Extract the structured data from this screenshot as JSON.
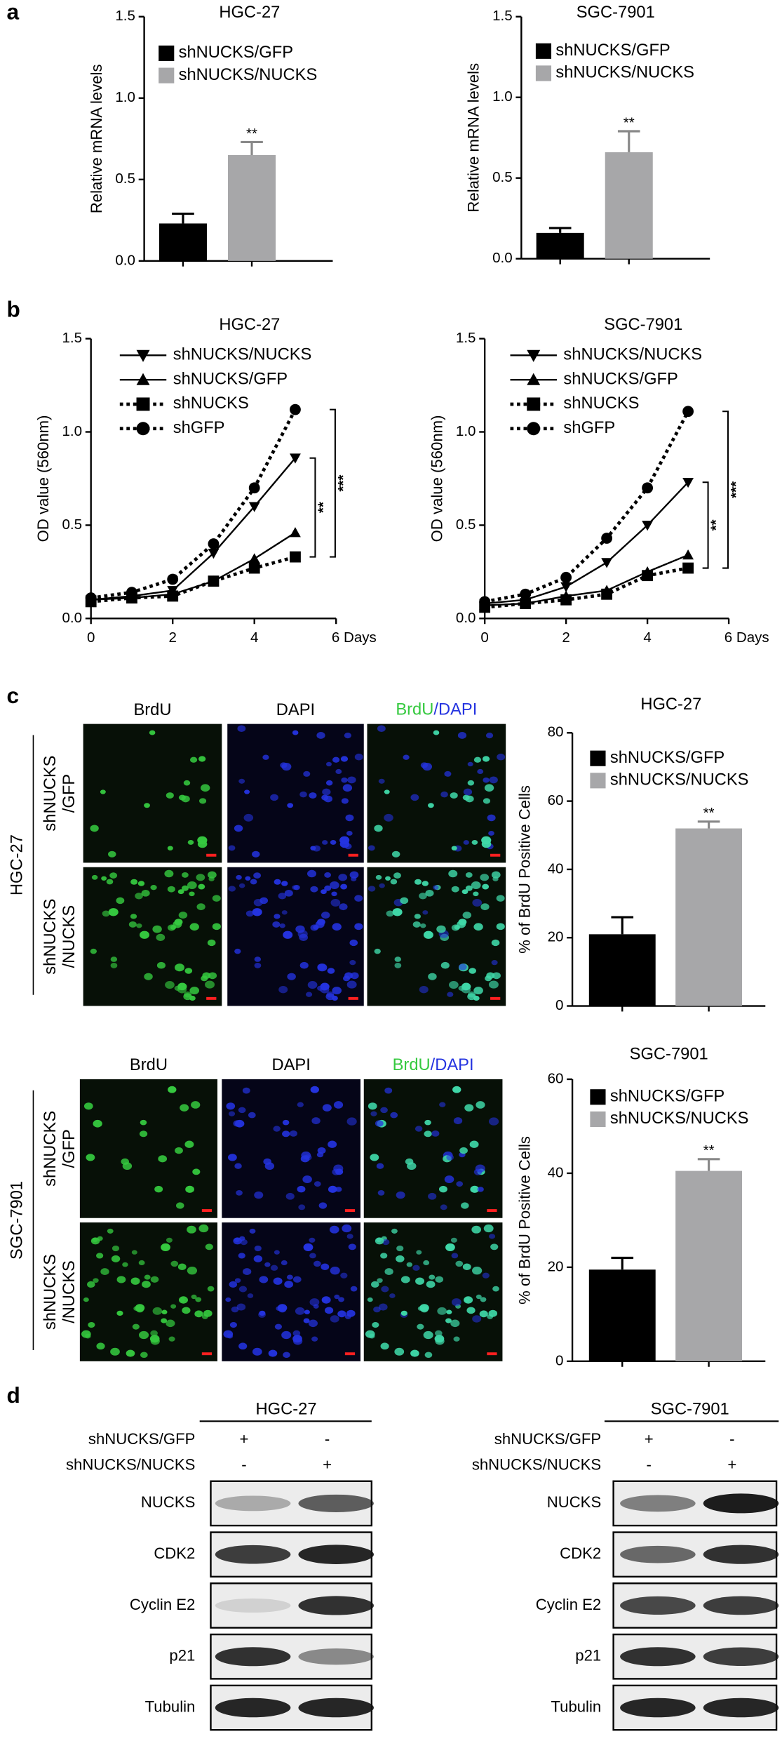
{
  "panels": [
    "a",
    "b",
    "c",
    "d"
  ],
  "chart_data": [
    {
      "type": "bar",
      "title": "HGC-27",
      "y_label": "Relative mRNA levels",
      "categories": [
        null
      ],
      "series": [
        {
          "name": "shNUCKS/GFP",
          "color": "#000000",
          "values": [
            0.23
          ],
          "errors": [
            0.06
          ]
        },
        {
          "name": "shNUCKS/NUCKS",
          "color": "#a7a7a9",
          "values": [
            0.65
          ],
          "errors": [
            0.08
          ]
        }
      ],
      "ylim": [
        0,
        1.5
      ],
      "yticks": [
        {
          "value": 0,
          "label": "0.0"
        },
        0.5,
        {
          "value": 1,
          "label": "1.0"
        },
        1.5
      ],
      "annotations": [
        "**"
      ]
    },
    {
      "type": "bar",
      "title": "SGC-7901",
      "y_label": "Relative mRNA levels",
      "categories": [
        null
      ],
      "series": [
        {
          "name": "shNUCKS/GFP",
          "color": "#000000",
          "values": [
            0.16
          ],
          "errors": [
            0.03
          ]
        },
        {
          "name": "shNUCKS/NUCKS",
          "color": "#a7a7a9",
          "values": [
            0.66
          ],
          "errors": [
            0.13
          ]
        }
      ],
      "ylim": [
        0,
        1.5
      ],
      "yticks": [
        {
          "value": 0,
          "label": "0.0"
        },
        0.5,
        {
          "value": 1,
          "label": "1.0"
        },
        1.5
      ],
      "annotations": [
        "**"
      ]
    },
    {
      "type": "line",
      "title": "HGC-27",
      "y_label": "OD value (560nm)",
      "x": [
        0,
        1,
        2,
        3,
        4,
        5
      ],
      "xlim": [
        0,
        6
      ],
      "xticks": [
        0,
        2,
        4,
        {
          "value": 6,
          "label": "6 Days"
        }
      ],
      "ylim": [
        0,
        1.5
      ],
      "yticks": [
        {
          "value": 0,
          "label": "0.0"
        },
        0.5,
        {
          "value": 1,
          "label": "1.0"
        },
        1.5
      ],
      "series": [
        {
          "name": "shNUCKS/NUCKS",
          "color": "#000000",
          "line_style": "solid",
          "marker": "triangle-down",
          "values": [
            0.1,
            0.12,
            0.15,
            0.35,
            0.6,
            0.86
          ]
        },
        {
          "name": "shNUCKS/GFP",
          "color": "#000000",
          "line_style": "solid",
          "marker": "triangle",
          "values": [
            0.1,
            0.11,
            0.13,
            0.2,
            0.32,
            0.46
          ]
        },
        {
          "name": "shNUCKS",
          "color": "#000000",
          "line_style": "dotted",
          "marker": "square",
          "values": [
            0.09,
            0.11,
            0.12,
            0.2,
            0.27,
            0.33
          ]
        },
        {
          "name": "shGFP",
          "color": "#000000",
          "line_style": "dotted",
          "marker": "circle",
          "values": [
            0.11,
            0.14,
            0.21,
            0.4,
            0.7,
            1.12
          ]
        }
      ],
      "annotations": [
        "**",
        "***"
      ]
    },
    {
      "type": "line",
      "title": "SGC-7901",
      "y_label": "OD value (560nm)",
      "x": [
        0,
        1,
        2,
        3,
        4,
        5
      ],
      "xlim": [
        0,
        6
      ],
      "xticks": [
        0,
        2,
        4,
        {
          "value": 6,
          "label": "6 Days"
        }
      ],
      "ylim": [
        0,
        1.5
      ],
      "yticks": [
        {
          "value": 0,
          "label": "0.0"
        },
        0.5,
        {
          "value": 1,
          "label": "1.0"
        },
        1.5
      ],
      "series": [
        {
          "name": "shNUCKS/NUCKS",
          "color": "#000000",
          "line_style": "solid",
          "marker": "triangle-down",
          "values": [
            0.08,
            0.1,
            0.17,
            0.3,
            0.5,
            0.73
          ]
        },
        {
          "name": "shNUCKS/GFP",
          "color": "#000000",
          "line_style": "solid",
          "marker": "triangle",
          "values": [
            0.07,
            0.08,
            0.12,
            0.15,
            0.25,
            0.34
          ]
        },
        {
          "name": "shNUCKS",
          "color": "#000000",
          "line_style": "dotted",
          "marker": "square",
          "values": [
            0.06,
            0.08,
            0.1,
            0.13,
            0.23,
            0.27
          ]
        },
        {
          "name": "shGFP",
          "color": "#000000",
          "line_style": "dotted",
          "marker": "circle",
          "values": [
            0.09,
            0.13,
            0.22,
            0.43,
            0.7,
            1.11
          ]
        }
      ],
      "annotations": [
        "**",
        "***"
      ]
    },
    {
      "type": "bar",
      "title": "HGC-27",
      "y_label": "% of BrdU Positive Cells",
      "categories": [
        null
      ],
      "series": [
        {
          "name": "shNUCKS/GFP",
          "color": "#000000",
          "values": [
            21
          ],
          "errors": [
            5
          ]
        },
        {
          "name": "shNUCKS/NUCKS",
          "color": "#a7a7a9",
          "values": [
            52
          ],
          "errors": [
            2
          ]
        }
      ],
      "ylim": [
        0,
        80
      ],
      "yticks": [
        0,
        20,
        40,
        60,
        80
      ],
      "annotations": [
        "**"
      ]
    },
    {
      "type": "bar",
      "title": "SGC-7901",
      "y_label": "% of BrdU Positive Cells",
      "categories": [
        null
      ],
      "series": [
        {
          "name": "shNUCKS/GFP",
          "color": "#000000",
          "values": [
            19.5
          ],
          "errors": [
            2.5
          ]
        },
        {
          "name": "shNUCKS/NUCKS",
          "color": "#a7a7a9",
          "values": [
            40.5
          ],
          "errors": [
            2.5
          ]
        }
      ],
      "ylim": [
        0,
        60
      ],
      "yticks": [
        0,
        20,
        40,
        60
      ],
      "annotations": [
        "**"
      ]
    }
  ],
  "microscopy": [
    {
      "cell_line": "HGC-27",
      "columns": [
        "BrdU",
        "DAPI"
      ],
      "merge": [
        "BrdU",
        "/DAPI"
      ],
      "rows": [
        [
          "shNUCKS",
          "/GFP"
        ],
        [
          "shNUCKS",
          "/NUCKS"
        ]
      ]
    },
    {
      "cell_line": "SGC-7901",
      "columns": [
        "BrdU",
        "DAPI"
      ],
      "merge": [
        "BrdU",
        "/DAPI"
      ],
      "rows": [
        [
          "shNUCKS",
          "/GFP"
        ],
        [
          "shNUCKS",
          "/NUCKS"
        ]
      ]
    }
  ],
  "western_blots": [
    {
      "title": "HGC-27",
      "conditions": [
        {
          "name": "shNUCKS/GFP",
          "marks": [
            "+",
            "-"
          ]
        },
        {
          "name": "shNUCKS/NUCKS",
          "marks": [
            "-",
            "+"
          ]
        }
      ],
      "bands": [
        "NUCKS",
        "CDK2",
        "Cyclin E2",
        "p21",
        "Tubulin"
      ]
    },
    {
      "title": "SGC-7901",
      "conditions": [
        {
          "name": "shNUCKS/GFP",
          "marks": [
            "+",
            "-"
          ]
        },
        {
          "name": "shNUCKS/NUCKS",
          "marks": [
            "-",
            "+"
          ]
        }
      ],
      "bands": [
        "NUCKS",
        "CDK2",
        "Cyclin E2",
        "p21",
        "Tubulin"
      ]
    }
  ]
}
